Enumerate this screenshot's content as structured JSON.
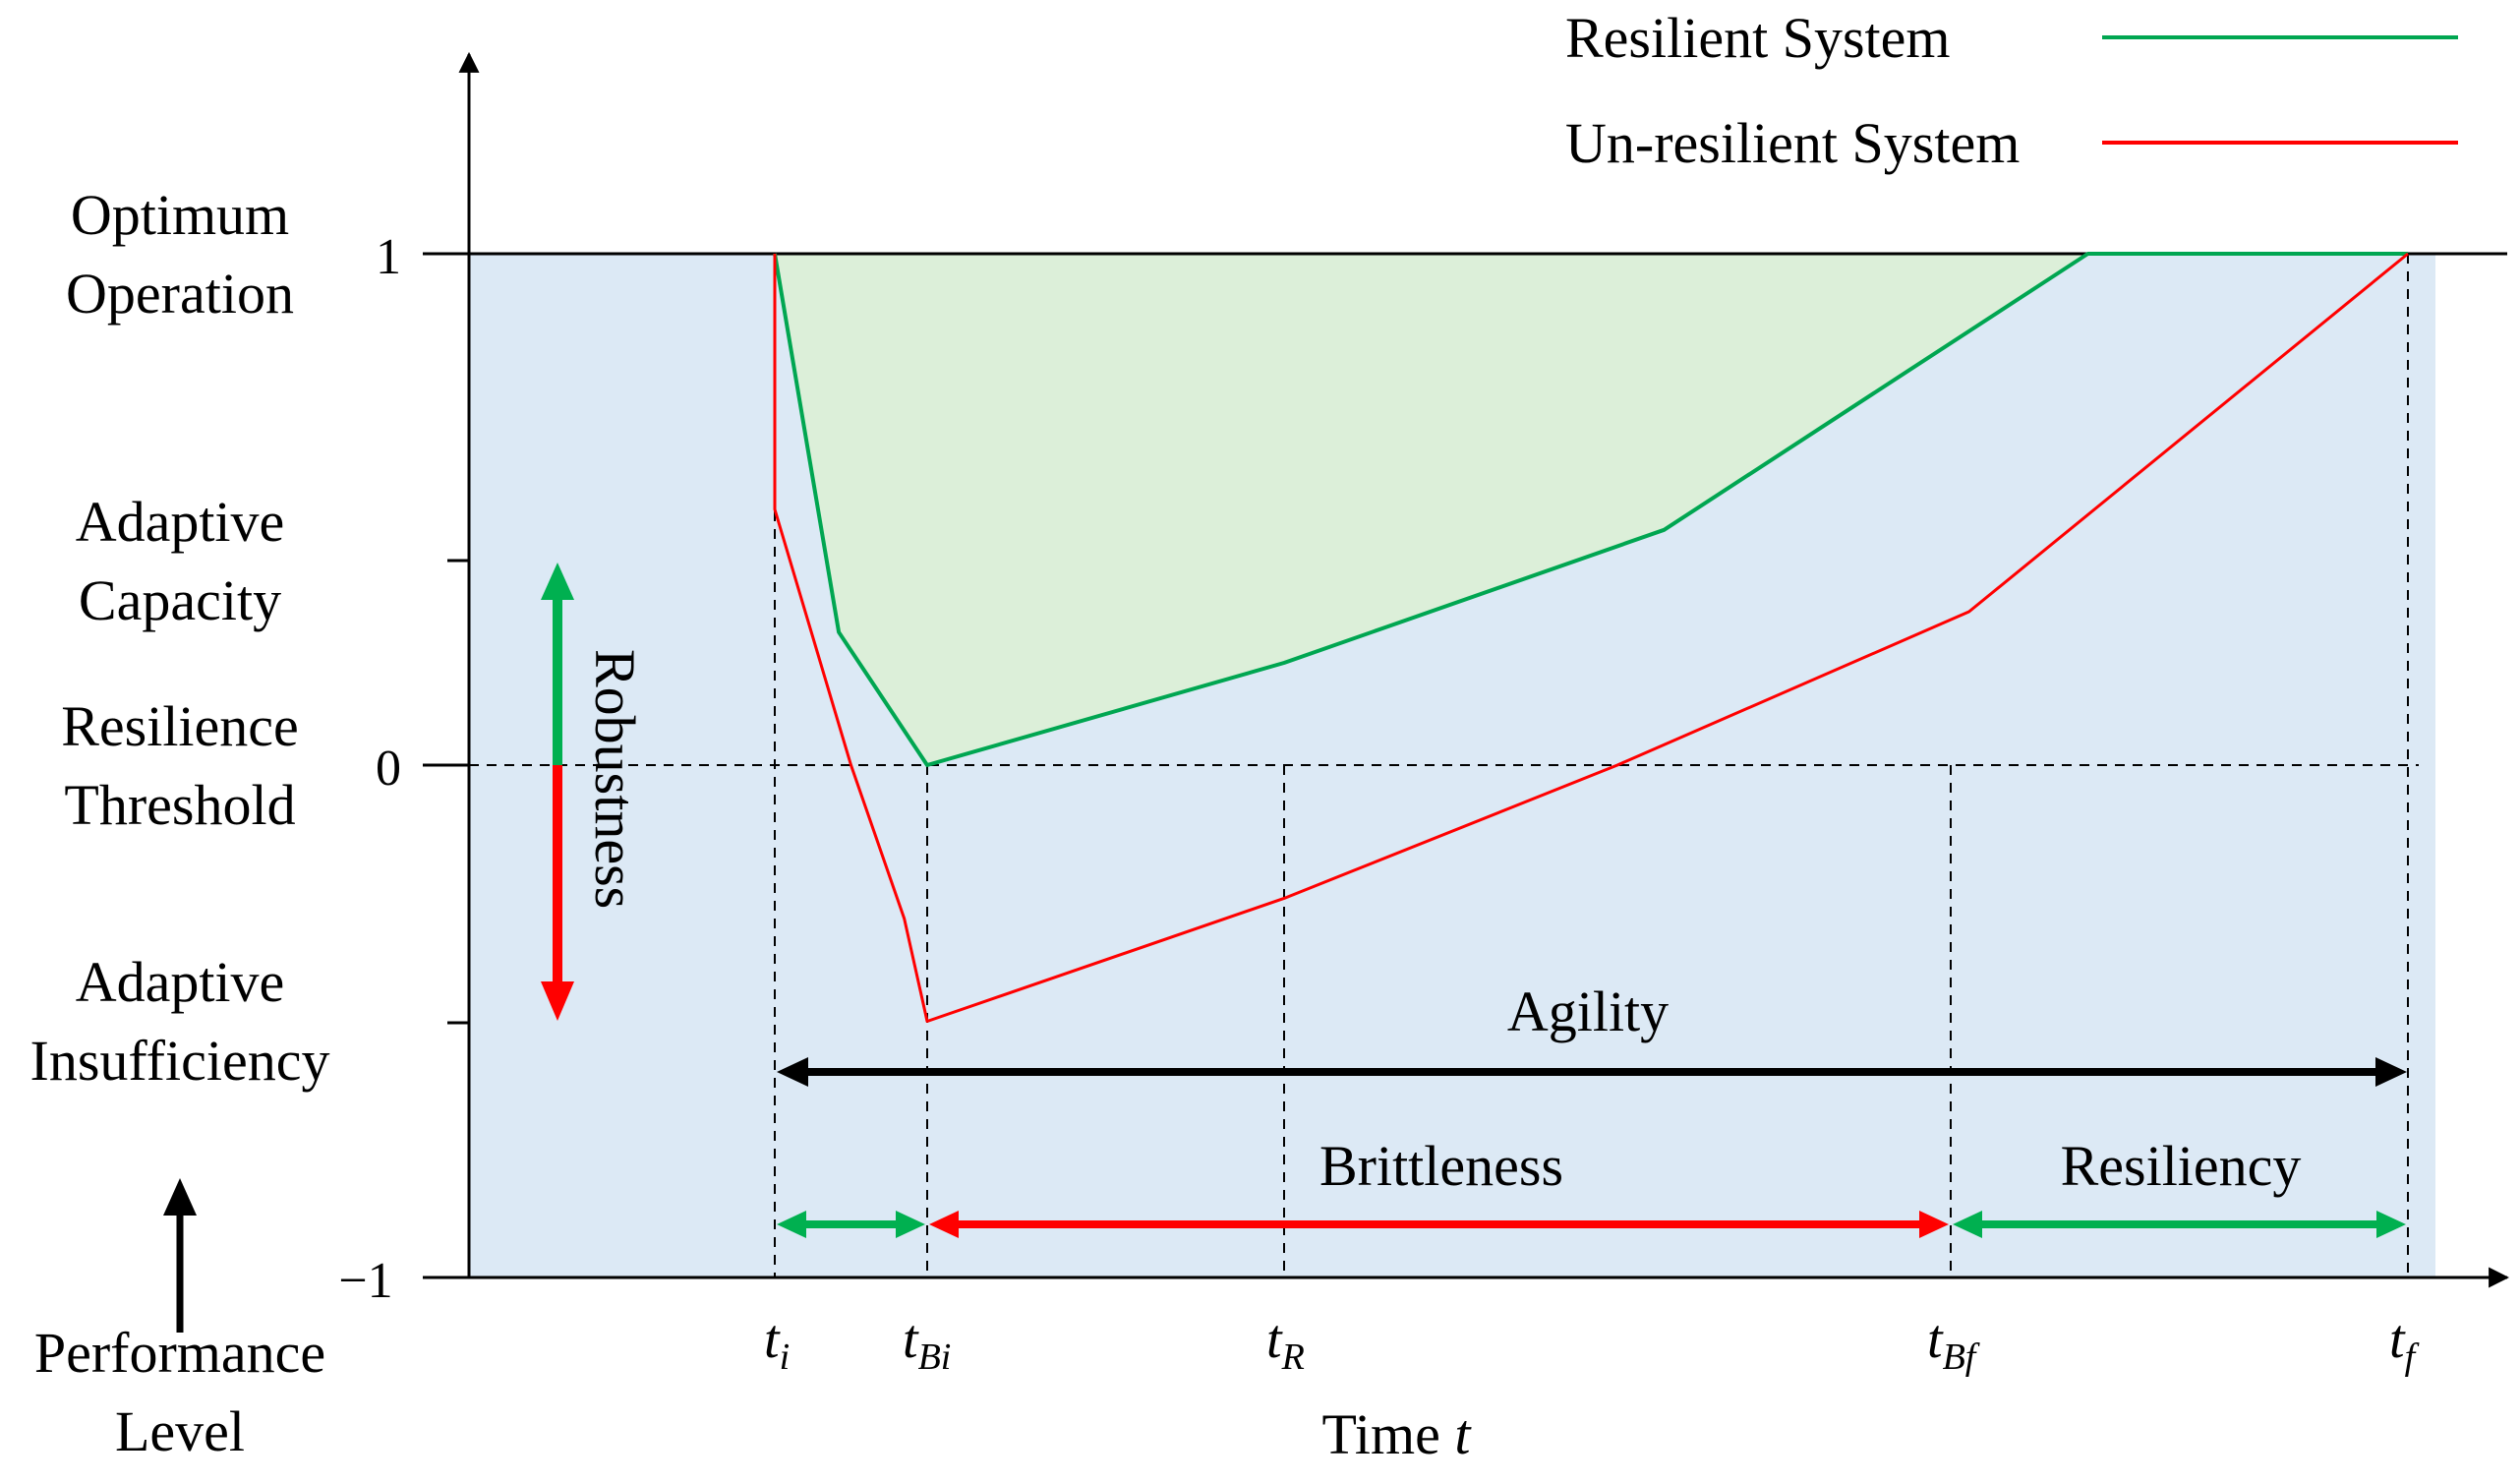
{
  "legend": {
    "resilient_label": "Resilient System",
    "unresilient_label": "Un-resilient System"
  },
  "colors": {
    "resilient": "#00a651",
    "unresilient": "#ff0000",
    "region_fill": "#dce9f5",
    "resilient_fill": "#dcefd9",
    "axis": "#000000",
    "arrow_green": "#00b050",
    "arrow_red": "#ff0000"
  },
  "y_axis": {
    "tick_1": "1",
    "tick_0": "0",
    "tick_neg1": "−1",
    "label_line1": "Performance",
    "label_line2": "Level",
    "levels": {
      "optimum_line1": "Optimum",
      "optimum_line2": "Operation",
      "adaptive_capacity_line1": "Adaptive",
      "adaptive_capacity_line2": "Capacity",
      "threshold_line1": "Resilience",
      "threshold_line2": "Threshold",
      "insufficiency_line1": "Adaptive",
      "insufficiency_line2": "Insufficiency"
    }
  },
  "x_axis": {
    "label": "Time",
    "label_var": "t",
    "ticks": [
      {
        "main": "t",
        "sub": "i"
      },
      {
        "main": "t",
        "sub": "Bi"
      },
      {
        "main": "t",
        "sub": "R"
      },
      {
        "main": "t",
        "sub": "Bf"
      },
      {
        "main": "t",
        "sub": "f"
      }
    ]
  },
  "annotations": {
    "robustness": "Robustness",
    "agility": "Agility",
    "brittleness": "Brittleness",
    "resiliency": "Resiliency"
  },
  "chart_data": {
    "type": "line",
    "x_categories": [
      "t_i",
      "t_Bi",
      "t_R",
      "t_Bf",
      "t_f"
    ],
    "ylim": [
      -1,
      1.35
    ],
    "series": [
      {
        "name": "Resilient System",
        "points": [
          [
            0.0,
            1.0
          ],
          [
            0.42,
            0.26
          ],
          [
            1.0,
            0.0
          ],
          [
            2.0,
            0.2
          ],
          [
            2.57,
            0.46
          ],
          [
            3.3,
            1.0
          ],
          [
            4.0,
            1.0
          ]
        ]
      },
      {
        "name": "Un-resilient System",
        "points": [
          [
            0.0,
            1.0
          ],
          [
            0.0,
            0.5
          ],
          [
            0.5,
            0.0
          ],
          [
            0.85,
            -0.3
          ],
          [
            1.0,
            -0.5
          ],
          [
            2.0,
            -0.26
          ],
          [
            2.5,
            0.0
          ],
          [
            3.04,
            0.3
          ],
          [
            4.0,
            1.0
          ]
        ]
      }
    ]
  }
}
